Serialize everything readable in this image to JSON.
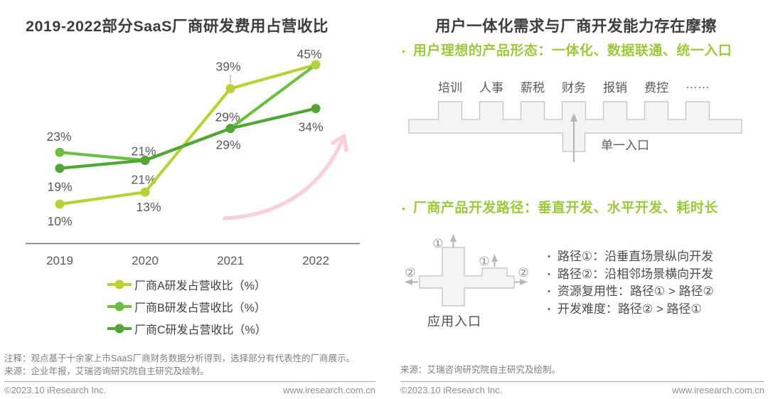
{
  "left": {
    "title": "2019-2022部分SaaS厂商研发费用占营收比",
    "note": "注释：观点基于十余家上市SaaS厂商财务数据分析得到，选择部分有代表性的厂商展示。",
    "source": "来源：企业年报，艾瑞咨询研究院自主研究及绘制。"
  },
  "chart_data": {
    "type": "line",
    "title": "2019-2022部分SaaS厂商研发费用占营收比",
    "categories": [
      "2019",
      "2020",
      "2021",
      "2022"
    ],
    "series": [
      {
        "name": "厂商A研发占营收比（%）",
        "color": "#b5d336",
        "values": [
          10,
          13,
          39,
          45
        ]
      },
      {
        "name": "厂商B研发占营收比（%）",
        "color": "#6cbe45",
        "values": [
          23,
          21,
          29,
          45
        ]
      },
      {
        "name": "厂商C研发占营收比（%）",
        "color": "#53a636",
        "values": [
          19,
          21,
          29,
          34
        ]
      }
    ],
    "data_label_format": "{value}%",
    "xlabel": "",
    "ylabel": "",
    "ylim": [
      0,
      52
    ],
    "grid": false,
    "legend_position": "bottom",
    "annotations": [
      "upward pink growth trend arrow"
    ]
  },
  "right": {
    "title": "用户一体化需求与厂商开发能力存在摩擦",
    "section1": {
      "heading": "用户理想的产品形态：一体化、数据联通、统一入口",
      "modules": [
        "培训",
        "人事",
        "薪税",
        "财务",
        "报销",
        "费控",
        "……"
      ],
      "entry_label": "单一入口"
    },
    "section2": {
      "heading": "厂商产品开发路径：垂直开发、水平开发、耗时长",
      "path1_marker": "①",
      "path2_marker": "②",
      "diagram_label": "应用入口",
      "bullets": [
        "路径①：沿垂直场景纵向开发",
        "路径②：沿相邻场景横向开发",
        "资源复用性：路径① > 路径②",
        "开发难度：路径② > 路径①"
      ]
    },
    "source": "来源：艾瑞咨询研究院自主研究及绘制。"
  },
  "footer": {
    "copyright": "©2023.10 iResearch Inc.",
    "website": "www.iresearch.com.cn"
  },
  "colors": {
    "title_text": "#3d3d3d",
    "heading_green": "#9cc83c",
    "series_a": "#b5d336",
    "series_b": "#6cbe45",
    "series_c": "#53a636",
    "data_label": "#595959",
    "trend_arrow_pink": "#f8d0d8",
    "diagram_fill": "#f4f4f4",
    "diagram_stroke": "#c9c9c9"
  }
}
